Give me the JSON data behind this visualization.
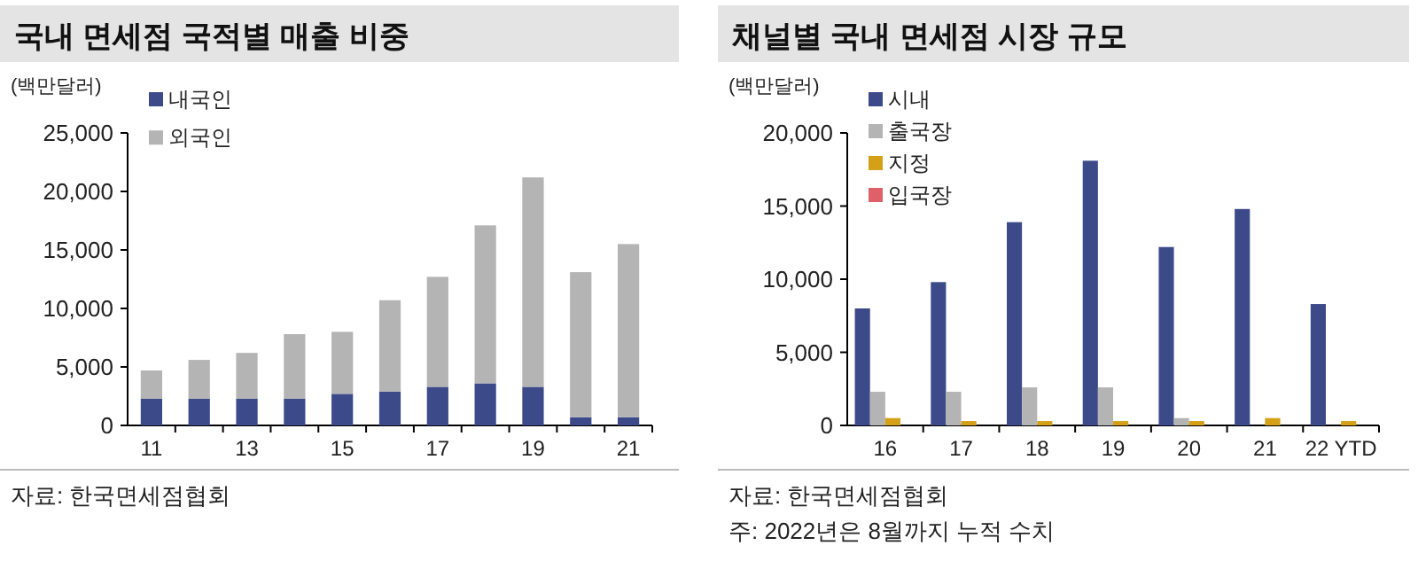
{
  "chart_data": [
    {
      "type": "bar",
      "title": "국내 면세점 국적별 매출 비중",
      "ylabel": "(백만달러)",
      "stacked": true,
      "legend": "top left",
      "grid": false,
      "categories": [
        "11",
        null,
        "13",
        null,
        "15",
        null,
        "17",
        null,
        "19",
        null,
        "21"
      ],
      "series": [
        {
          "name": "내국인",
          "color": "#3d4a8a",
          "values": [
            2300,
            2300,
            2300,
            2300,
            2700,
            2900,
            3300,
            3600,
            3300,
            700,
            700
          ]
        },
        {
          "name": "외국인",
          "color": "#b4b4b4",
          "values": [
            2400,
            3300,
            3900,
            5500,
            5300,
            7800,
            9400,
            13500,
            17900,
            12400,
            14800
          ]
        }
      ],
      "ylim": [
        0,
        25000
      ],
      "yticks": [
        {
          "value": 0,
          "label": "0"
        },
        {
          "value": 5000,
          "label": "5,000"
        },
        {
          "value": 10000,
          "label": "10,000"
        },
        {
          "value": 15000,
          "label": "15,000"
        },
        {
          "value": 20000,
          "label": "20,000"
        },
        {
          "value": 25000,
          "label": "25,000"
        }
      ],
      "annotations": [
        "자료: 한국면세점협회"
      ]
    },
    {
      "type": "bar",
      "title": "채널별 국내 면세점 시장 규모",
      "ylabel": "(백만달러)",
      "legend": "top left",
      "grid": false,
      "categories": [
        "16",
        "17",
        "18",
        "19",
        "20",
        "21",
        "22 YTD"
      ],
      "series": [
        {
          "name": "시내",
          "color": "#3d4a8a",
          "values": [
            8000,
            9800,
            13900,
            18100,
            12200,
            14800,
            8300
          ]
        },
        {
          "name": "출국장",
          "color": "#b4b4b4",
          "values": [
            2300,
            2300,
            2600,
            2600,
            500,
            0,
            null
          ]
        },
        {
          "name": "지정",
          "color": "#d4a017",
          "values": [
            500,
            300,
            300,
            300,
            300,
            500,
            300
          ]
        },
        {
          "name": "입국장",
          "color": "#e0606a",
          "values": [
            0,
            0,
            0,
            0,
            0,
            0,
            0
          ]
        }
      ],
      "ylim": [
        0,
        20000
      ],
      "yticks": [
        {
          "value": 0,
          "label": "0"
        },
        {
          "value": 5000,
          "label": "5,000"
        },
        {
          "value": 10000,
          "label": "10,000"
        },
        {
          "value": 15000,
          "label": "15,000"
        },
        {
          "value": 20000,
          "label": "20,000"
        }
      ],
      "annotations": [
        "자료: 한국면세점협회",
        "주: 2022년은 8월까지 누적 수치"
      ]
    }
  ]
}
